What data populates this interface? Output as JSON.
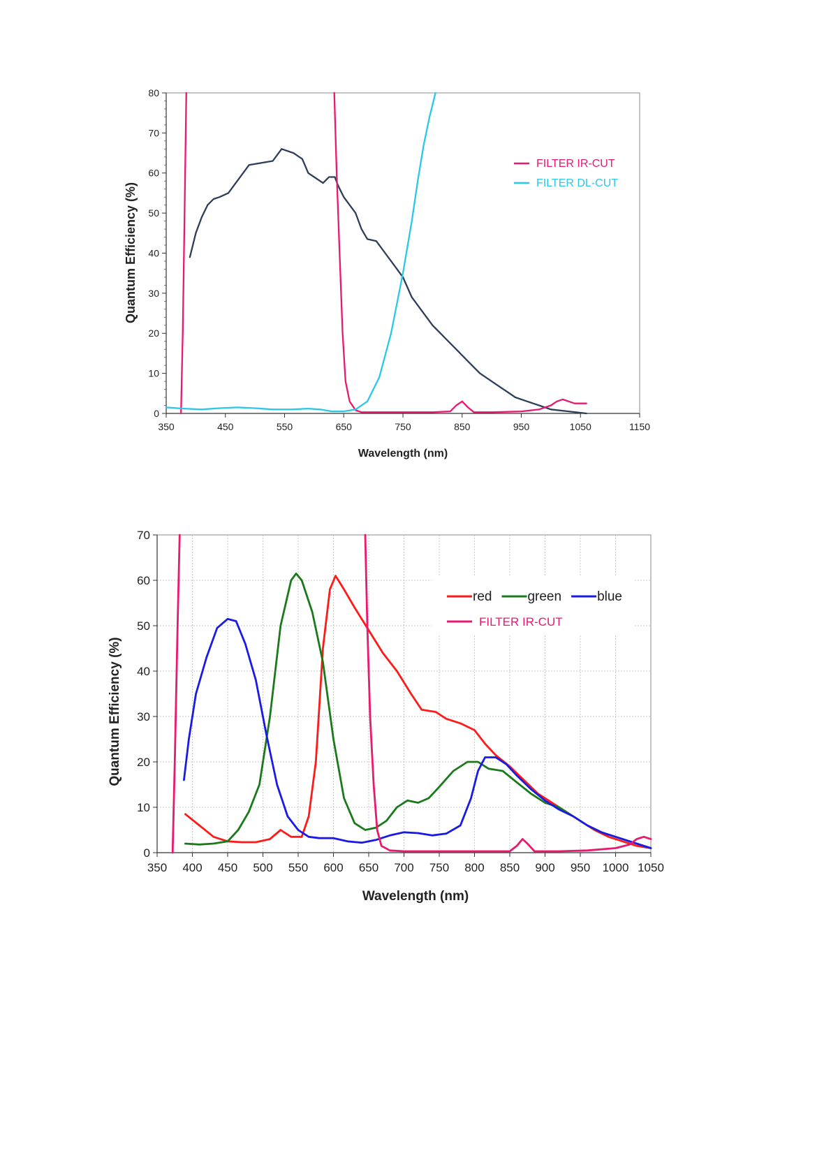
{
  "chart_data": [
    {
      "type": "line",
      "title": "",
      "xlabel": "Wavelength (nm)",
      "ylabel": "Quantum Efficiency (%)",
      "xlim": [
        350,
        1150
      ],
      "ylim": [
        0,
        80
      ],
      "xticks": [
        "350",
        "450",
        "550",
        "650",
        "750",
        "850",
        "950",
        "1050",
        "1150"
      ],
      "yticks": [
        "0",
        "10",
        "20",
        "30",
        "40",
        "50",
        "60",
        "70",
        "80"
      ],
      "grid": false,
      "legend_position": "top-right",
      "series": [
        {
          "name": "",
          "color": "#2d3e5a",
          "legend": false,
          "points": [
            [
              390,
              39
            ],
            [
              400,
              45
            ],
            [
              410,
              49
            ],
            [
              420,
              52
            ],
            [
              430,
              53.5
            ],
            [
              440,
              54
            ],
            [
              455,
              55
            ],
            [
              470,
              58
            ],
            [
              490,
              62
            ],
            [
              510,
              62.5
            ],
            [
              530,
              63
            ],
            [
              545,
              66
            ],
            [
              565,
              65
            ],
            [
              580,
              63.5
            ],
            [
              590,
              60
            ],
            [
              600,
              59
            ],
            [
              615,
              57.5
            ],
            [
              625,
              59
            ],
            [
              635,
              59
            ],
            [
              640,
              57
            ],
            [
              650,
              54
            ],
            [
              660,
              52
            ],
            [
              670,
              50
            ],
            [
              680,
              46
            ],
            [
              690,
              43.5
            ],
            [
              705,
              43
            ],
            [
              720,
              40
            ],
            [
              735,
              37
            ],
            [
              750,
              34
            ],
            [
              765,
              29
            ],
            [
              780,
              26
            ],
            [
              800,
              22
            ],
            [
              820,
              19
            ],
            [
              840,
              16
            ],
            [
              860,
              13
            ],
            [
              880,
              10
            ],
            [
              900,
              8
            ],
            [
              920,
              6
            ],
            [
              940,
              4
            ],
            [
              960,
              3
            ],
            [
              980,
              2
            ],
            [
              1000,
              1
            ],
            [
              1030,
              0.5
            ],
            [
              1060,
              0
            ]
          ]
        },
        {
          "name": "FILTER IR-CUT",
          "color": "#e8196e",
          "legend": true,
          "points": [
            [
              375,
              0
            ],
            [
              378,
              20
            ],
            [
              381,
              50
            ],
            [
              384,
              80
            ],
            [
              null,
              null
            ],
            [
              634,
              80
            ],
            [
              638,
              60
            ],
            [
              643,
              40
            ],
            [
              648,
              20
            ],
            [
              653,
              8
            ],
            [
              660,
              3
            ],
            [
              670,
              0.8
            ],
            [
              680,
              0.3
            ],
            [
              700,
              0.3
            ],
            [
              750,
              0.3
            ],
            [
              800,
              0.3
            ],
            [
              830,
              0.5
            ],
            [
              840,
              2
            ],
            [
              850,
              3
            ],
            [
              860,
              1.5
            ],
            [
              870,
              0.3
            ],
            [
              900,
              0.3
            ],
            [
              950,
              0.5
            ],
            [
              980,
              1
            ],
            [
              1000,
              2
            ],
            [
              1010,
              3
            ],
            [
              1020,
              3.5
            ],
            [
              1030,
              3
            ],
            [
              1040,
              2.5
            ],
            [
              1060,
              2.5
            ]
          ]
        },
        {
          "name": "FILTER DL-CUT",
          "color": "#29c7ea",
          "legend": true,
          "points": [
            [
              350,
              1.5
            ],
            [
              380,
              1.2
            ],
            [
              410,
              1
            ],
            [
              440,
              1.3
            ],
            [
              470,
              1.5
            ],
            [
              500,
              1.3
            ],
            [
              530,
              1
            ],
            [
              560,
              1
            ],
            [
              590,
              1.2
            ],
            [
              610,
              1
            ],
            [
              630,
              0.5
            ],
            [
              650,
              0.5
            ],
            [
              670,
              1
            ],
            [
              690,
              3
            ],
            [
              710,
              9
            ],
            [
              730,
              20
            ],
            [
              750,
              35
            ],
            [
              765,
              48
            ],
            [
              775,
              58
            ],
            [
              785,
              67
            ],
            [
              795,
              74
            ],
            [
              805,
              80
            ]
          ]
        }
      ]
    },
    {
      "type": "line",
      "title": "",
      "xlabel": "Wavelength (nm)",
      "ylabel": "Quantum Efficiency (%)",
      "xlim": [
        350,
        1050
      ],
      "ylim": [
        0,
        70
      ],
      "xticks": [
        "350",
        "400",
        "450",
        "500",
        "550",
        "600",
        "650",
        "700",
        "750",
        "800",
        "850",
        "900",
        "950",
        "1000",
        "1050"
      ],
      "yticks": [
        "0",
        "10",
        "20",
        "30",
        "40",
        "50",
        "60",
        "70"
      ],
      "grid": true,
      "legend_position": "top-right",
      "series": [
        {
          "name": "red",
          "color": "#ff1a1a",
          "legend": true,
          "points": [
            [
              390,
              8.5
            ],
            [
              410,
              6
            ],
            [
              430,
              3.5
            ],
            [
              450,
              2.5
            ],
            [
              470,
              2.3
            ],
            [
              490,
              2.3
            ],
            [
              510,
              3
            ],
            [
              525,
              5
            ],
            [
              540,
              3.5
            ],
            [
              555,
              3.5
            ],
            [
              565,
              8
            ],
            [
              575,
              20
            ],
            [
              585,
              45
            ],
            [
              595,
              58
            ],
            [
              603,
              61
            ],
            [
              615,
              58
            ],
            [
              630,
              54
            ],
            [
              650,
              49
            ],
            [
              670,
              44
            ],
            [
              690,
              40
            ],
            [
              710,
              35
            ],
            [
              725,
              31.5
            ],
            [
              745,
              31
            ],
            [
              760,
              29.5
            ],
            [
              780,
              28.5
            ],
            [
              800,
              27
            ],
            [
              815,
              24
            ],
            [
              830,
              21.5
            ],
            [
              850,
              19
            ],
            [
              870,
              16
            ],
            [
              890,
              13
            ],
            [
              910,
              11
            ],
            [
              930,
              9
            ],
            [
              950,
              7
            ],
            [
              970,
              5
            ],
            [
              990,
              3.5
            ],
            [
              1010,
              2.5
            ],
            [
              1030,
              1.5
            ],
            [
              1050,
              1
            ]
          ]
        },
        {
          "name": "green",
          "color": "#1a7a1a",
          "legend": true,
          "points": [
            [
              390,
              2
            ],
            [
              410,
              1.8
            ],
            [
              430,
              2
            ],
            [
              450,
              2.5
            ],
            [
              465,
              5
            ],
            [
              480,
              9
            ],
            [
              495,
              15
            ],
            [
              510,
              30
            ],
            [
              525,
              50
            ],
            [
              540,
              60
            ],
            [
              547,
              61.5
            ],
            [
              555,
              60
            ],
            [
              570,
              53
            ],
            [
              585,
              42
            ],
            [
              600,
              25
            ],
            [
              615,
              12
            ],
            [
              630,
              6.5
            ],
            [
              645,
              5
            ],
            [
              660,
              5.5
            ],
            [
              675,
              7
            ],
            [
              690,
              10
            ],
            [
              705,
              11.5
            ],
            [
              720,
              11
            ],
            [
              735,
              12
            ],
            [
              750,
              14.5
            ],
            [
              770,
              18
            ],
            [
              790,
              20
            ],
            [
              805,
              20
            ],
            [
              820,
              18.5
            ],
            [
              840,
              18
            ],
            [
              860,
              15.5
            ],
            [
              880,
              13
            ],
            [
              900,
              11
            ],
            [
              920,
              10
            ],
            [
              940,
              8
            ],
            [
              960,
              6
            ],
            [
              980,
              4.5
            ],
            [
              1000,
              3.5
            ],
            [
              1020,
              2.5
            ],
            [
              1050,
              1
            ]
          ]
        },
        {
          "name": "blue",
          "color": "#1a1ae6",
          "legend": true,
          "points": [
            [
              388,
              16
            ],
            [
              395,
              25
            ],
            [
              405,
              35
            ],
            [
              420,
              43
            ],
            [
              435,
              49.5
            ],
            [
              450,
              51.5
            ],
            [
              462,
              51
            ],
            [
              475,
              46
            ],
            [
              490,
              38
            ],
            [
              505,
              26
            ],
            [
              520,
              15
            ],
            [
              535,
              8
            ],
            [
              550,
              5
            ],
            [
              565,
              3.5
            ],
            [
              580,
              3.2
            ],
            [
              600,
              3.2
            ],
            [
              620,
              2.5
            ],
            [
              640,
              2.2
            ],
            [
              660,
              2.8
            ],
            [
              680,
              3.8
            ],
            [
              700,
              4.5
            ],
            [
              720,
              4.3
            ],
            [
              740,
              3.8
            ],
            [
              760,
              4.2
            ],
            [
              780,
              6
            ],
            [
              795,
              12
            ],
            [
              805,
              18
            ],
            [
              815,
              21
            ],
            [
              830,
              21
            ],
            [
              845,
              19.5
            ],
            [
              860,
              17
            ],
            [
              880,
              14
            ],
            [
              900,
              11.5
            ],
            [
              920,
              9.5
            ],
            [
              940,
              8
            ],
            [
              960,
              6
            ],
            [
              980,
              4.5
            ],
            [
              1000,
              3.5
            ],
            [
              1020,
              2.5
            ],
            [
              1050,
              1
            ]
          ]
        },
        {
          "name": "FILTER IR-CUT",
          "color": "#e8196e",
          "legend": true,
          "points": [
            [
              372,
              0
            ],
            [
              375,
              20
            ],
            [
              379,
              50
            ],
            [
              382,
              70
            ],
            [
              null,
              null
            ],
            [
              645,
              70
            ],
            [
              648,
              50
            ],
            [
              652,
              30
            ],
            [
              657,
              15
            ],
            [
              662,
              5
            ],
            [
              668,
              1.5
            ],
            [
              680,
              0.5
            ],
            [
              700,
              0.3
            ],
            [
              750,
              0.3
            ],
            [
              800,
              0.3
            ],
            [
              850,
              0.3
            ],
            [
              860,
              1.5
            ],
            [
              868,
              3
            ],
            [
              875,
              2
            ],
            [
              885,
              0.3
            ],
            [
              920,
              0.3
            ],
            [
              960,
              0.5
            ],
            [
              1000,
              1
            ],
            [
              1020,
              1.8
            ],
            [
              1030,
              3
            ],
            [
              1040,
              3.5
            ],
            [
              1050,
              3
            ]
          ]
        }
      ]
    }
  ]
}
